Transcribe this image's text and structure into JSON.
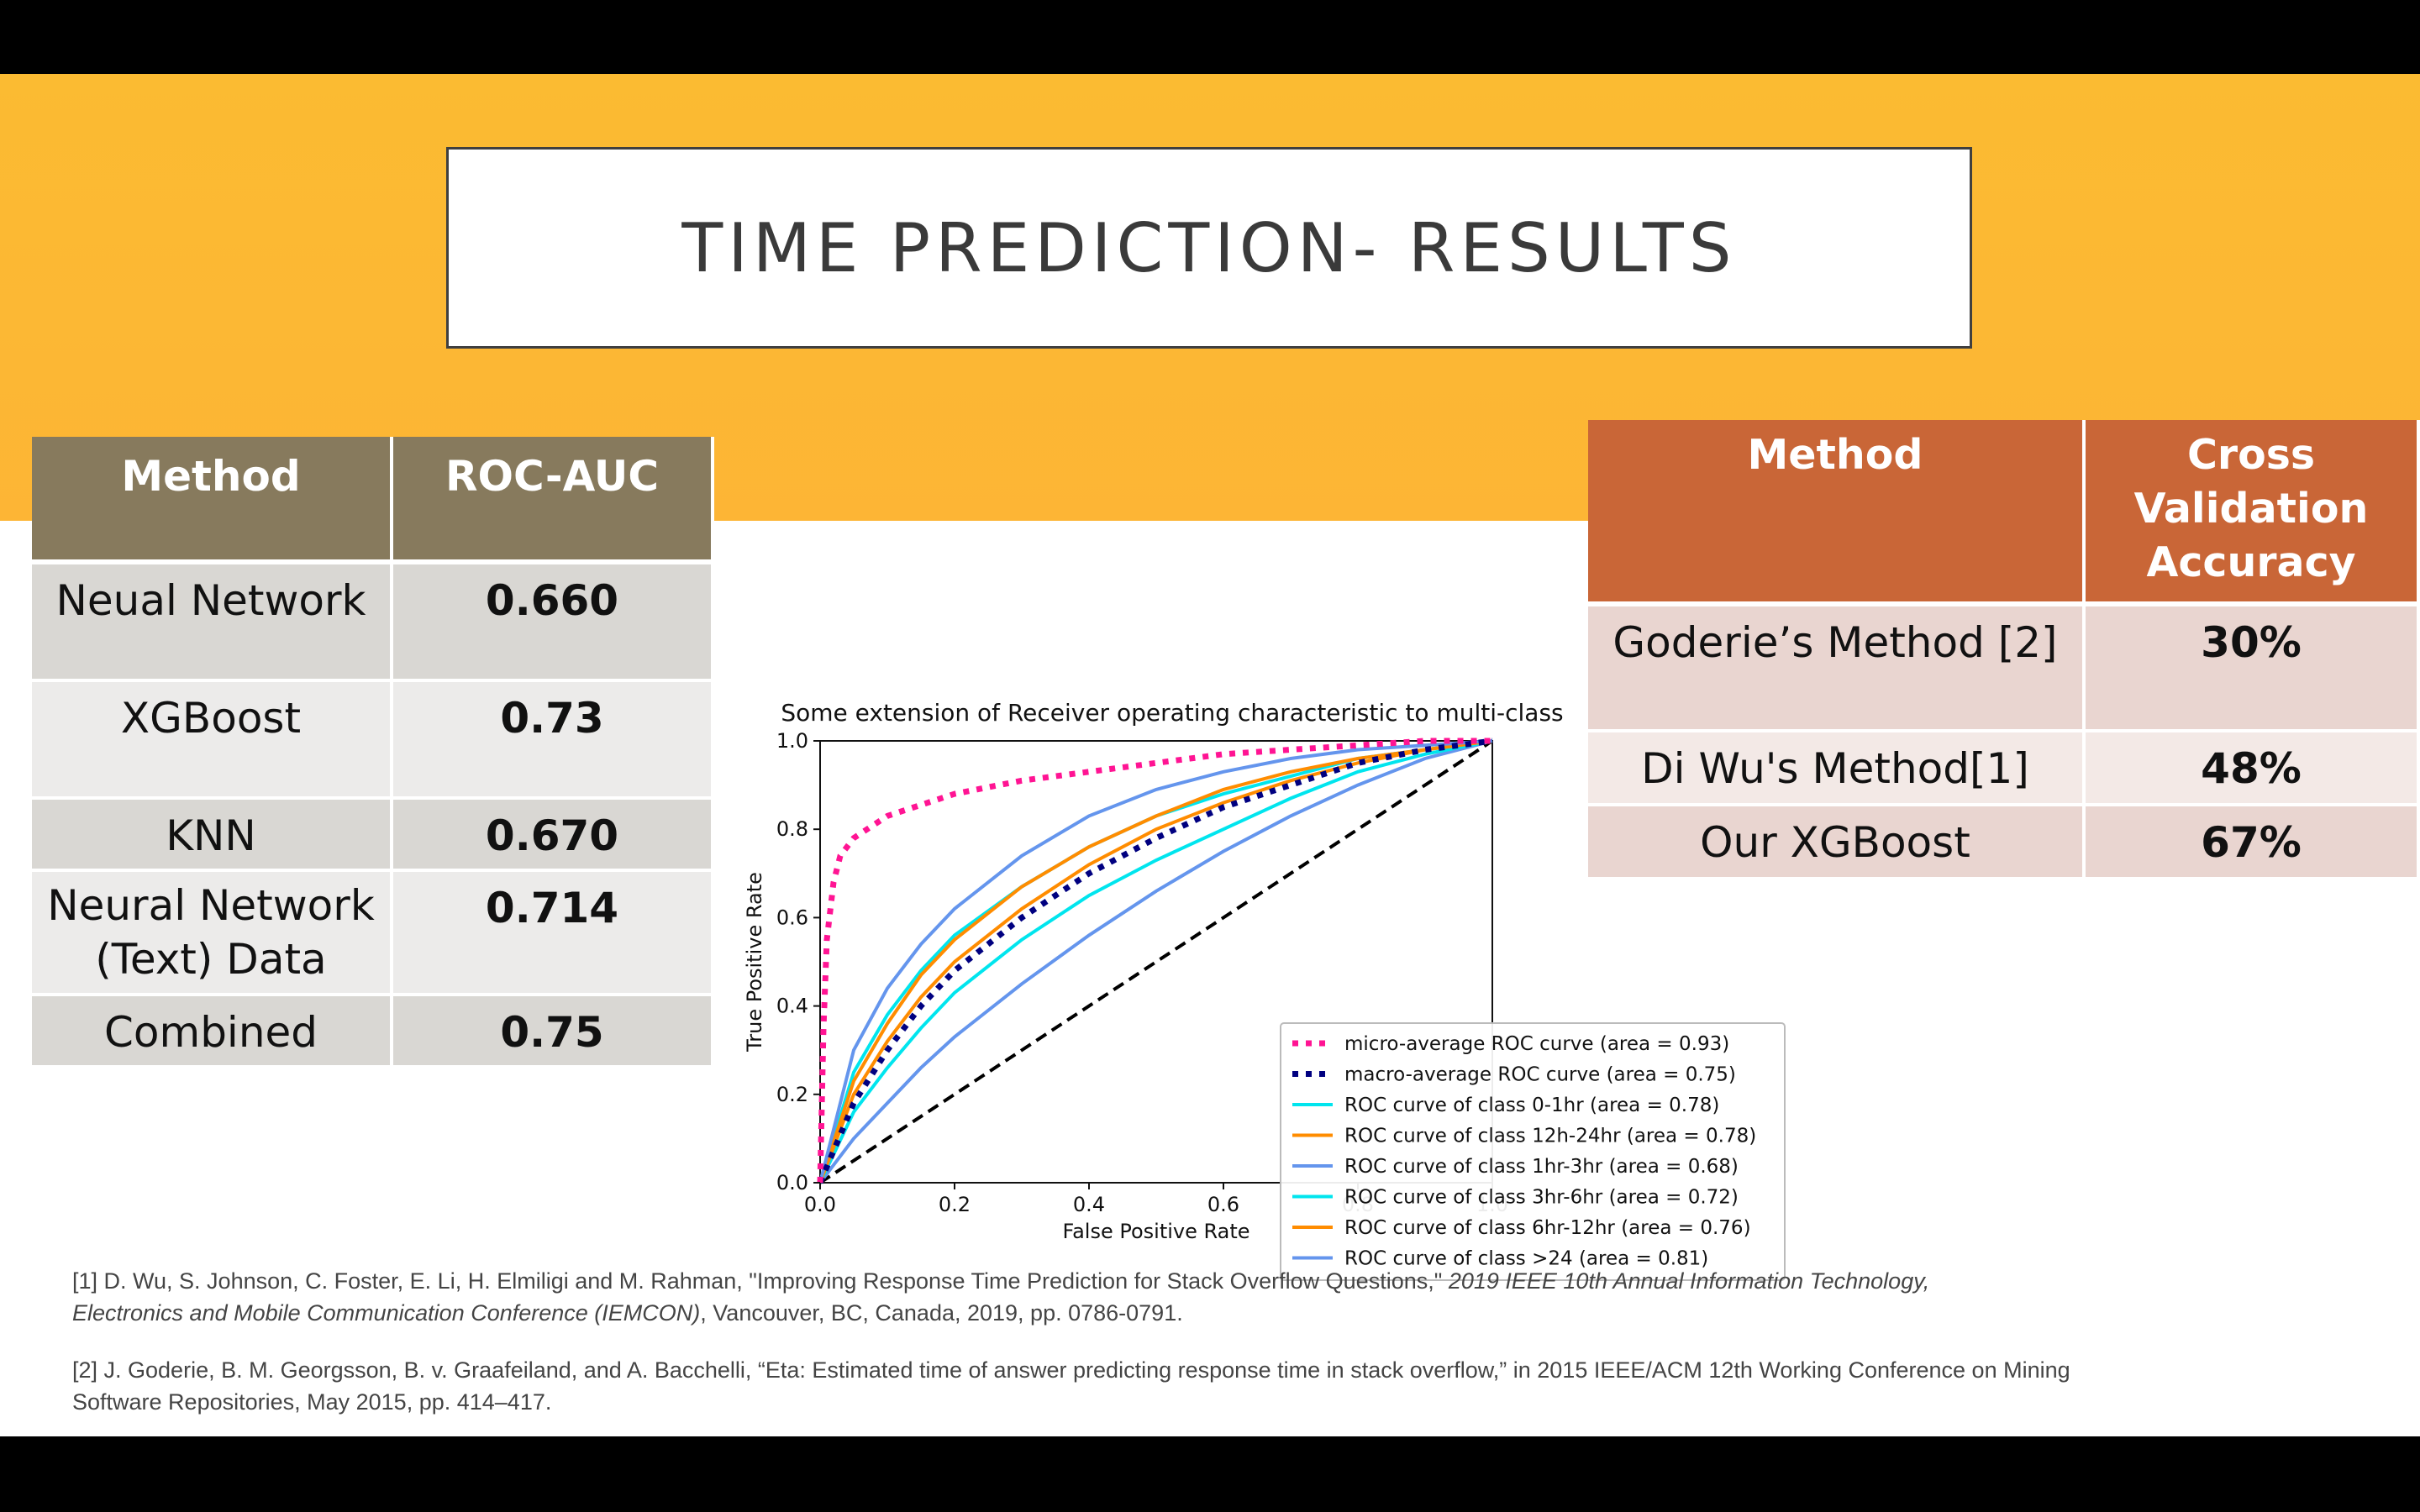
{
  "slide": {
    "title": "TIME PREDICTION- RESULTS"
  },
  "left_table": {
    "headers": [
      "Method",
      "ROC-AUC"
    ],
    "rows": [
      {
        "method": "Neual Network",
        "value": "0.660"
      },
      {
        "method": "XGBoost",
        "value": "0.73"
      },
      {
        "method": "KNN",
        "value": "0.670"
      },
      {
        "method": "Neural Network (Text) Data",
        "value": "0.714"
      },
      {
        "method": "Combined",
        "value": "0.75"
      }
    ]
  },
  "right_table": {
    "headers": [
      "Method",
      "Cross Validation Accuracy"
    ],
    "rows": [
      {
        "method": "Goderie’s Method [2]",
        "value": "30%"
      },
      {
        "method": "Di Wu's Method[1]",
        "value": "48%"
      },
      {
        "method": "Our XGBoost",
        "value": "67%"
      }
    ]
  },
  "chart_data": {
    "type": "line",
    "title": "Some extension of Receiver operating characteristic to multi-class",
    "xlabel": "False Positive Rate",
    "ylabel": "True Positive Rate",
    "xlim": [
      0.0,
      1.0
    ],
    "ylim": [
      0.0,
      1.0
    ],
    "xticks": [
      "0.0",
      "0.2",
      "0.4",
      "0.6",
      "0.8",
      "1.0"
    ],
    "yticks": [
      "0.0",
      "0.2",
      "0.4",
      "0.6",
      "0.8",
      "1.0"
    ],
    "legend_position": "lower-right",
    "series": [
      {
        "name": "micro-average ROC curve (area = 0.93)",
        "color": "#ff1493",
        "style": "dotted",
        "auc": 0.93,
        "x": [
          0.0,
          0.005,
          0.01,
          0.02,
          0.03,
          0.05,
          0.1,
          0.2,
          0.3,
          0.4,
          0.5,
          0.6,
          0.7,
          0.8,
          0.9,
          1.0
        ],
        "y": [
          0.0,
          0.35,
          0.55,
          0.68,
          0.74,
          0.78,
          0.83,
          0.88,
          0.91,
          0.93,
          0.95,
          0.97,
          0.98,
          0.99,
          1.0,
          1.0
        ]
      },
      {
        "name": "macro-average ROC curve (area = 0.75)",
        "color": "#000080",
        "style": "dotted",
        "auc": 0.75,
        "x": [
          0.0,
          0.05,
          0.1,
          0.15,
          0.2,
          0.3,
          0.4,
          0.5,
          0.6,
          0.7,
          0.8,
          0.9,
          1.0
        ],
        "y": [
          0.0,
          0.18,
          0.3,
          0.4,
          0.48,
          0.6,
          0.7,
          0.78,
          0.85,
          0.9,
          0.95,
          0.98,
          1.0
        ]
      },
      {
        "name": "ROC curve of class 0-1hr (area = 0.78)",
        "color": "#00e5ee",
        "style": "solid",
        "auc": 0.78,
        "x": [
          0.0,
          0.05,
          0.1,
          0.15,
          0.2,
          0.3,
          0.4,
          0.5,
          0.6,
          0.7,
          0.8,
          0.9,
          1.0
        ],
        "y": [
          0.0,
          0.25,
          0.38,
          0.48,
          0.56,
          0.67,
          0.76,
          0.83,
          0.88,
          0.92,
          0.96,
          0.98,
          1.0
        ]
      },
      {
        "name": "ROC curve of class 12h-24hr (area = 0.78)",
        "color": "#ff8c00",
        "style": "solid",
        "auc": 0.78,
        "x": [
          0.0,
          0.05,
          0.1,
          0.15,
          0.2,
          0.3,
          0.4,
          0.5,
          0.6,
          0.7,
          0.8,
          0.9,
          1.0
        ],
        "y": [
          0.0,
          0.23,
          0.36,
          0.47,
          0.55,
          0.67,
          0.76,
          0.83,
          0.89,
          0.93,
          0.96,
          0.98,
          1.0
        ]
      },
      {
        "name": "ROC curve of class 1hr-3hr (area = 0.68)",
        "color": "#6495ed",
        "style": "solid",
        "auc": 0.68,
        "x": [
          0.0,
          0.05,
          0.1,
          0.15,
          0.2,
          0.3,
          0.4,
          0.5,
          0.6,
          0.7,
          0.8,
          0.9,
          1.0
        ],
        "y": [
          0.0,
          0.1,
          0.18,
          0.26,
          0.33,
          0.45,
          0.56,
          0.66,
          0.75,
          0.83,
          0.9,
          0.96,
          1.0
        ]
      },
      {
        "name": "ROC curve of class 3hr-6hr (area = 0.72)",
        "color": "#00e5ee",
        "style": "solid",
        "auc": 0.72,
        "x": [
          0.0,
          0.05,
          0.1,
          0.15,
          0.2,
          0.3,
          0.4,
          0.5,
          0.6,
          0.7,
          0.8,
          0.9,
          1.0
        ],
        "y": [
          0.0,
          0.16,
          0.26,
          0.35,
          0.43,
          0.55,
          0.65,
          0.73,
          0.8,
          0.87,
          0.93,
          0.97,
          1.0
        ]
      },
      {
        "name": "ROC curve of class 6hr-12hr (area = 0.76)",
        "color": "#ff8c00",
        "style": "solid",
        "auc": 0.76,
        "x": [
          0.0,
          0.05,
          0.1,
          0.15,
          0.2,
          0.3,
          0.4,
          0.5,
          0.6,
          0.7,
          0.8,
          0.9,
          1.0
        ],
        "y": [
          0.0,
          0.2,
          0.32,
          0.42,
          0.5,
          0.62,
          0.72,
          0.8,
          0.86,
          0.91,
          0.95,
          0.98,
          1.0
        ]
      },
      {
        "name": "ROC curve of class >24 (area = 0.81)",
        "color": "#6495ed",
        "style": "solid",
        "auc": 0.81,
        "x": [
          0.0,
          0.05,
          0.1,
          0.15,
          0.2,
          0.3,
          0.4,
          0.5,
          0.6,
          0.7,
          0.8,
          0.9,
          1.0
        ],
        "y": [
          0.0,
          0.3,
          0.44,
          0.54,
          0.62,
          0.74,
          0.83,
          0.89,
          0.93,
          0.96,
          0.98,
          0.99,
          1.0
        ]
      }
    ],
    "diagonal": {
      "color": "#000000",
      "style": "dashed",
      "x": [
        0.0,
        1.0
      ],
      "y": [
        0.0,
        1.0
      ]
    }
  },
  "references": {
    "ref1_plain": "[1] D. Wu, S. Johnson, C. Foster, E. Li, H. Elmiligi and M. Rahman, \"Improving Response Time Prediction for Stack Overflow Questions,\" ",
    "ref1_italic": "2019 IEEE 10th Annual Information Technology, Electronics and Mobile Communication Conference (IEMCON)",
    "ref1_tail": ", Vancouver, BC, Canada, 2019, pp. 0786-0791.",
    "ref2": "[2] J. Goderie, B. M. Georgsson, B. v. Graafeiland, and A. Bacchelli, “Eta: Estimated time of answer predicting response time in stack overflow,” in 2015 IEEE/ACM 12th Working Conference on Mining Software Repositories, May 2015, pp. 414–417."
  }
}
